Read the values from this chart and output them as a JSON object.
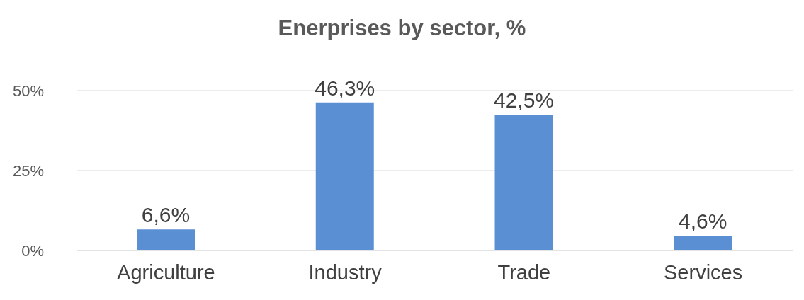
{
  "chart_data": {
    "type": "bar",
    "title": "Enerprises by sector, %",
    "categories": [
      "Agriculture",
      "Industry",
      "Trade",
      "Services"
    ],
    "values": [
      6.6,
      46.3,
      42.5,
      4.6
    ],
    "value_labels": [
      "6,6%",
      "46,3%",
      "42,5%",
      "4,6%"
    ],
    "color": "#5b8fd4",
    "ylim": [
      0,
      50
    ],
    "yticks": [
      {
        "value": 0,
        "label": "0%"
      },
      {
        "value": 25,
        "label": "25%"
      },
      {
        "value": 50,
        "label": "50%"
      }
    ],
    "grid": "y"
  }
}
